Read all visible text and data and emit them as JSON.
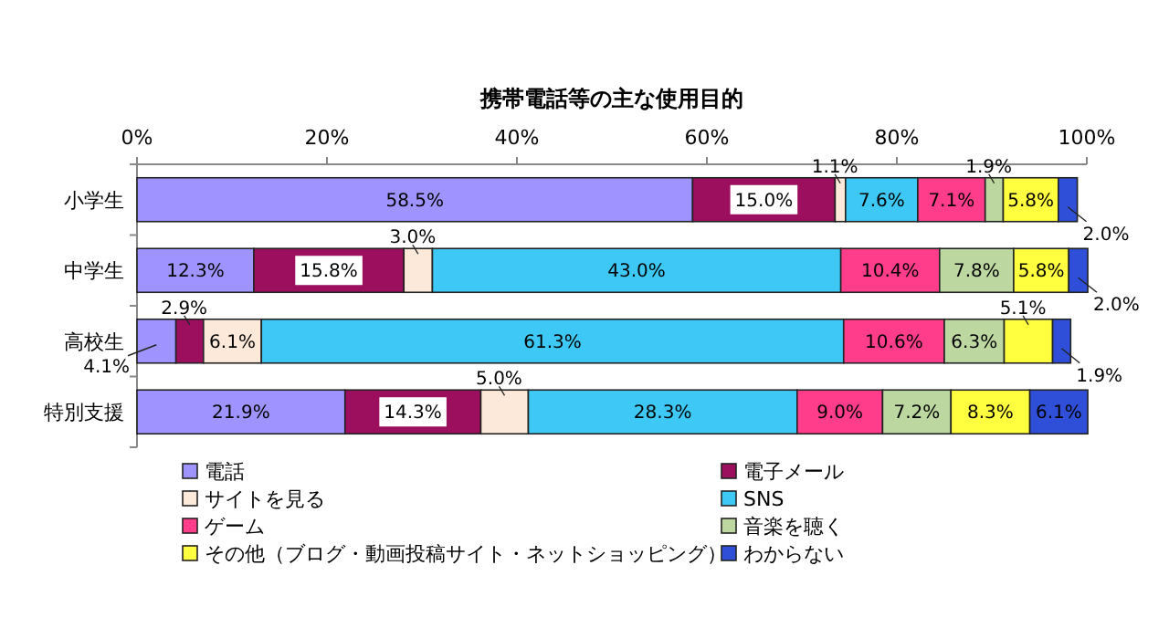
{
  "chart_data": {
    "type": "bar",
    "orientation": "horizontal",
    "stacked": true,
    "title": "携帯電話等の主な使用目的",
    "categories": [
      "小学生",
      "中学生",
      "高校生",
      "特別支援"
    ],
    "xlim": [
      0,
      100
    ],
    "xticks": [
      {
        "value": 0,
        "label": "0%"
      },
      {
        "value": 20,
        "label": "20%"
      },
      {
        "value": 40,
        "label": "40%"
      },
      {
        "value": 60,
        "label": "60%"
      },
      {
        "value": 80,
        "label": "80%"
      },
      {
        "value": 100,
        "label": "100%"
      }
    ],
    "series": [
      {
        "name": "電話",
        "color": "#9f94ff",
        "values": [
          58.5,
          12.3,
          4.1,
          21.9
        ],
        "value_labels": [
          "58.5%",
          "12.3%",
          "4.1%",
          "21.9%"
        ]
      },
      {
        "name": "電子メール",
        "color": "#9c0f5f",
        "values": [
          15.0,
          15.8,
          2.9,
          14.3
        ],
        "value_labels": [
          "15.0%",
          "15.8%",
          "2.9%",
          "14.3%"
        ]
      },
      {
        "name": "サイトを見る",
        "color": "#fde9d9",
        "values": [
          1.1,
          3.0,
          6.1,
          5.0
        ],
        "value_labels": [
          "1.1%",
          "3.0%",
          "6.1%",
          "5.0%"
        ]
      },
      {
        "name": "SNS",
        "color": "#3dc8f5",
        "values": [
          7.6,
          43.0,
          61.3,
          28.3
        ],
        "value_labels": [
          "7.6%",
          "43.0%",
          "61.3%",
          "28.3%"
        ]
      },
      {
        "name": "ゲーム",
        "color": "#ff3d8b",
        "values": [
          7.1,
          10.4,
          10.6,
          9.0
        ],
        "value_labels": [
          "7.1%",
          "10.4%",
          "10.6%",
          "9.0%"
        ]
      },
      {
        "name": "音楽を聴く",
        "color": "#bcd8a0",
        "values": [
          1.9,
          7.8,
          6.3,
          7.2
        ],
        "value_labels": [
          "1.9%",
          "7.8%",
          "6.3%",
          "7.2%"
        ]
      },
      {
        "name": "その他（ブログ・動画投稿サイト・ネットショッピング）",
        "color": "#ffff40",
        "values": [
          5.8,
          5.8,
          5.1,
          8.3
        ],
        "value_labels": [
          "5.8%",
          "5.8%",
          "5.1%",
          "8.3%"
        ]
      },
      {
        "name": "わからない",
        "color": "#2f4fd8",
        "values": [
          2.0,
          2.0,
          1.9,
          6.1
        ],
        "value_labels": [
          "2.0%",
          "2.0%",
          "1.9%",
          "6.1%"
        ]
      }
    ],
    "legend": "bottom",
    "grid": false
  }
}
